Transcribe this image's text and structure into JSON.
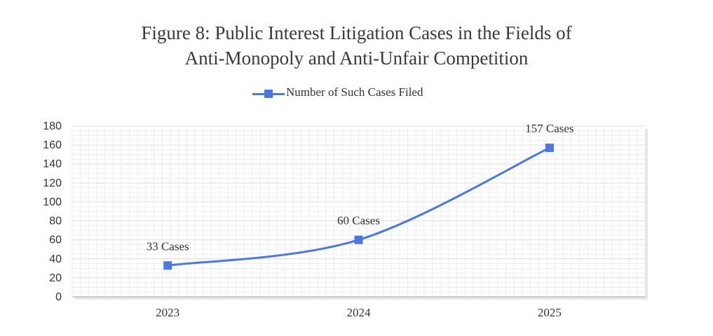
{
  "chart_data": {
    "type": "line",
    "title_lines": [
      "Figure 8: Public Interest Litigation Cases in the Fields of",
      "Anti-Monopoly and Anti-Unfair Competition"
    ],
    "xlabel": "",
    "ylabel": "",
    "categories": [
      "2023",
      "2024",
      "2025"
    ],
    "series": [
      {
        "name": "Number of Such Cases Filed",
        "values": [
          33,
          60,
          157
        ],
        "data_labels": [
          "33 Cases",
          "60 Cases",
          "157 Cases"
        ],
        "color": "#4a78e0",
        "marker": "square",
        "smooth": true
      }
    ],
    "ylim": [
      0,
      180
    ],
    "yticks": [
      0,
      20,
      40,
      60,
      80,
      100,
      120,
      140,
      160,
      180
    ],
    "grid": true,
    "legend": "top-center"
  }
}
